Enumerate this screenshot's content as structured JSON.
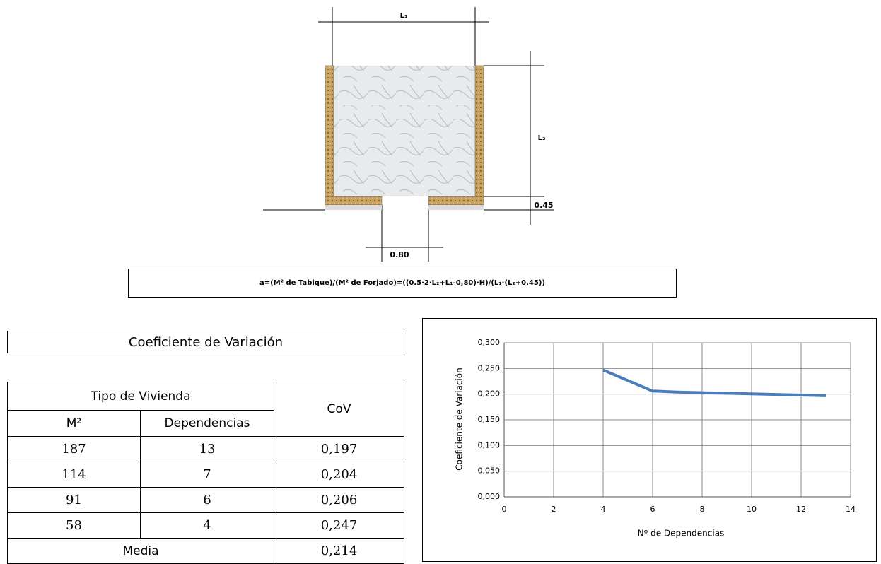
{
  "diagram": {
    "width_label": "L₁",
    "depth_label": "L₂",
    "wall_label": "0.45",
    "door_label": "0.80"
  },
  "formula": "a=(M² de Tabique)/(M² de Forjado)=((0.5·2·L₂+L₁-0,80)·H)/(L₁·(L₂+0.45))",
  "table": {
    "title": "Coeficiente de Variación",
    "group_header": "Tipo de Vivienda",
    "columns": [
      "M²",
      "Dependencias",
      "CoV"
    ],
    "rows": [
      [
        "187",
        "13",
        "0,197"
      ],
      [
        "114",
        "7",
        "0,204"
      ],
      [
        "91",
        "6",
        "0,206"
      ],
      [
        "58",
        "4",
        "0,247"
      ]
    ],
    "footer": [
      "Media",
      "0,214"
    ]
  },
  "chart_data": {
    "type": "line",
    "x_label": "Nº de Dependencias",
    "y_label": "Coeficiente de Variación",
    "x": [
      4,
      6,
      7,
      13
    ],
    "series": [
      {
        "color": "#4a7ebb",
        "values": [
          0.247,
          0.206,
          0.204,
          0.197
        ]
      }
    ],
    "xlim": [
      0,
      14
    ],
    "xticks": [
      0,
      2,
      4,
      6,
      8,
      10,
      12,
      14
    ],
    "ylim": [
      0,
      0.3
    ],
    "yticks": [
      {
        "value": 0,
        "label": "0,000"
      },
      {
        "value": 0.05,
        "label": "0,050"
      },
      {
        "value": 0.1,
        "label": "0,100"
      },
      {
        "value": 0.15,
        "label": "0,150"
      },
      {
        "value": 0.2,
        "label": "0,200"
      },
      {
        "value": 0.25,
        "label": "0,250"
      },
      {
        "value": 0.3,
        "label": "0,300"
      }
    ],
    "grid": true
  }
}
